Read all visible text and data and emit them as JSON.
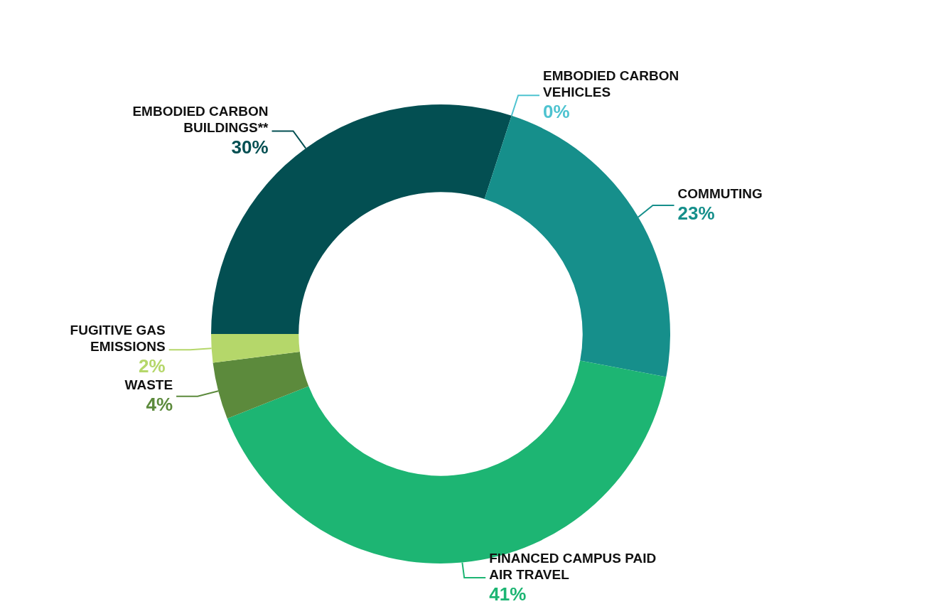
{
  "chart_data": {
    "type": "donut",
    "categories": [
      "EMBODIED CARBON BUILDINGS**",
      "EMBODIED CARBON VEHICLES",
      "COMMUTING",
      "FINANCED CAMPUS PAID AIR TRAVEL",
      "WASTE",
      "FUGITIVE GAS EMISSIONS"
    ],
    "values": [
      30,
      0,
      23,
      41,
      4,
      2
    ],
    "value_labels": [
      "30%",
      "0%",
      "23%",
      "41%",
      "4%",
      "2%"
    ],
    "colors": [
      "#034f52",
      "#4ec3d0",
      "#168f8b",
      "#1db573",
      "#5c8a3c",
      "#b5d76a"
    ],
    "legend": false
  }
}
